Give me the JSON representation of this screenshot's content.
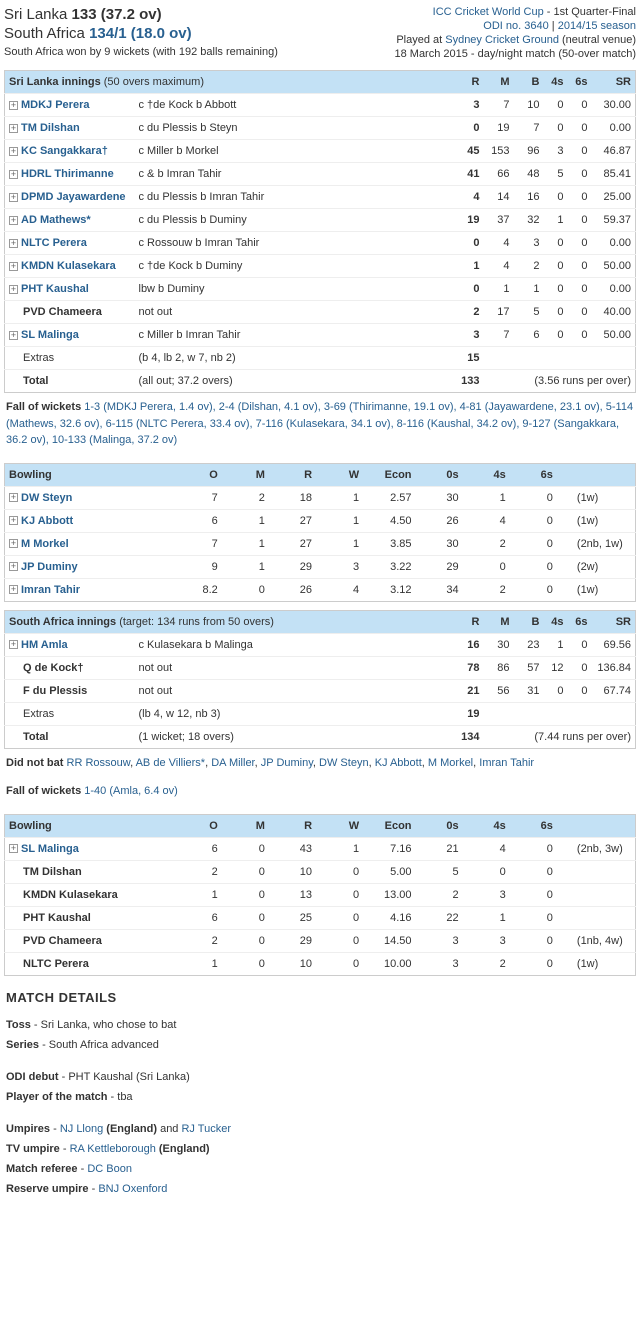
{
  "header": {
    "team1": "Sri Lanka",
    "score1": "133 (37.2 ov)",
    "team2": "South Africa",
    "score2": "134/1 (18.0 ov)",
    "result": "South Africa won by 9 wickets (with 192 balls remaining)",
    "tournament": "ICC Cricket World Cup",
    "stage": " - 1st Quarter-Final",
    "odi": "ODI no. 3640",
    "season": "2014/15 season",
    "venue_pre": "Played at ",
    "venue": "Sydney Cricket Ground",
    "venue_post": " (neutral venue)",
    "date": "18 March 2015 - day/night match (50-over match)"
  },
  "innings1": {
    "title": "Sri Lanka innings",
    "subtitle": " (50 overs maximum)",
    "cols": [
      "R",
      "M",
      "B",
      "4s",
      "6s",
      "SR"
    ],
    "batsmen": [
      {
        "e": true,
        "n": "MDKJ Perera",
        "d": "c †de Kock b Abbott",
        "r": "3",
        "m": "7",
        "b": "10",
        "f": "0",
        "s": "0",
        "sr": "30.00"
      },
      {
        "e": true,
        "n": "TM Dilshan",
        "d": "c du Plessis b Steyn",
        "r": "0",
        "m": "19",
        "b": "7",
        "f": "0",
        "s": "0",
        "sr": "0.00"
      },
      {
        "e": true,
        "n": "KC Sangakkara†",
        "d": "c Miller b Morkel",
        "r": "45",
        "m": "153",
        "b": "96",
        "f": "3",
        "s": "0",
        "sr": "46.87"
      },
      {
        "e": true,
        "n": "HDRL Thirimanne",
        "d": "c & b Imran Tahir",
        "r": "41",
        "m": "66",
        "b": "48",
        "f": "5",
        "s": "0",
        "sr": "85.41"
      },
      {
        "e": true,
        "n": "DPMD Jayawardene",
        "d": "c du Plessis b Imran Tahir",
        "r": "4",
        "m": "14",
        "b": "16",
        "f": "0",
        "s": "0",
        "sr": "25.00"
      },
      {
        "e": true,
        "n": "AD Mathews*",
        "d": "c du Plessis b Duminy",
        "r": "19",
        "m": "37",
        "b": "32",
        "f": "1",
        "s": "0",
        "sr": "59.37"
      },
      {
        "e": true,
        "n": "NLTC Perera",
        "d": "c Rossouw b Imran Tahir",
        "r": "0",
        "m": "4",
        "b": "3",
        "f": "0",
        "s": "0",
        "sr": "0.00"
      },
      {
        "e": true,
        "n": "KMDN Kulasekara",
        "d": "c †de Kock b Duminy",
        "r": "1",
        "m": "4",
        "b": "2",
        "f": "0",
        "s": "0",
        "sr": "50.00"
      },
      {
        "e": true,
        "n": "PHT Kaushal",
        "d": "lbw b Duminy",
        "r": "0",
        "m": "1",
        "b": "1",
        "f": "0",
        "s": "0",
        "sr": "0.00"
      },
      {
        "e": false,
        "n": "PVD Chameera",
        "d": "not out",
        "r": "2",
        "m": "17",
        "b": "5",
        "f": "0",
        "s": "0",
        "sr": "40.00"
      },
      {
        "e": true,
        "n": "SL Malinga",
        "d": "c Miller b Imran Tahir",
        "r": "3",
        "m": "7",
        "b": "6",
        "f": "0",
        "s": "0",
        "sr": "50.00"
      }
    ],
    "extras_lbl": "Extras",
    "extras_d": "(b 4, lb 2, w 7, nb 2)",
    "extras_r": "15",
    "total_lbl": "Total",
    "total_d": "(all out; 37.2 overs)",
    "total_r": "133",
    "total_rr": "(3.56 runs per over)",
    "fow_lbl": "Fall of wickets",
    "fow": "1-3 (MDKJ Perera, 1.4 ov), 2-4 (Dilshan, 4.1 ov), 3-69 (Thirimanne, 19.1 ov), 4-81 (Jayawardene, 23.1 ov), 5-114 (Mathews, 32.6 ov), 6-115 (NLTC Perera, 33.4 ov), 7-116 (Kulasekara, 34.1 ov), 8-116 (Kaushal, 34.2 ov), 9-127 (Sangakkara, 36.2 ov), 10-133 (Malinga, 37.2 ov)"
  },
  "bowling1": {
    "title": "Bowling",
    "cols": [
      "O",
      "M",
      "R",
      "W",
      "Econ",
      "0s",
      "4s",
      "6s"
    ],
    "bowlers": [
      {
        "e": true,
        "n": "DW Steyn",
        "o": "7",
        "m": "2",
        "r": "18",
        "w": "1",
        "ec": "2.57",
        "z": "30",
        "f": "1",
        "s": "0",
        "x": "(1w)"
      },
      {
        "e": true,
        "n": "KJ Abbott",
        "o": "6",
        "m": "1",
        "r": "27",
        "w": "1",
        "ec": "4.50",
        "z": "26",
        "f": "4",
        "s": "0",
        "x": "(1w)"
      },
      {
        "e": true,
        "n": "M Morkel",
        "o": "7",
        "m": "1",
        "r": "27",
        "w": "1",
        "ec": "3.85",
        "z": "30",
        "f": "2",
        "s": "0",
        "x": "(2nb, 1w)"
      },
      {
        "e": true,
        "n": "JP Duminy",
        "o": "9",
        "m": "1",
        "r": "29",
        "w": "3",
        "ec": "3.22",
        "z": "29",
        "f": "0",
        "s": "0",
        "x": "(2w)"
      },
      {
        "e": true,
        "n": "Imran Tahir",
        "o": "8.2",
        "m": "0",
        "r": "26",
        "w": "4",
        "ec": "3.12",
        "z": "34",
        "f": "2",
        "s": "0",
        "x": "(1w)"
      }
    ]
  },
  "innings2": {
    "title": "South Africa innings",
    "subtitle": " (target: 134 runs from 50 overs)",
    "batsmen": [
      {
        "e": true,
        "n": "HM Amla",
        "d": "c Kulasekara b Malinga",
        "r": "16",
        "m": "30",
        "b": "23",
        "f": "1",
        "s": "0",
        "sr": "69.56"
      },
      {
        "e": false,
        "n": "Q de Kock†",
        "d": "not out",
        "r": "78",
        "m": "86",
        "b": "57",
        "f": "12",
        "s": "0",
        "sr": "136.84"
      },
      {
        "e": false,
        "n": "F du Plessis",
        "d": "not out",
        "r": "21",
        "m": "56",
        "b": "31",
        "f": "0",
        "s": "0",
        "sr": "67.74"
      }
    ],
    "extras_lbl": "Extras",
    "extras_d": "(lb 4, w 12, nb 3)",
    "extras_r": "19",
    "total_lbl": "Total",
    "total_d": "(1 wicket; 18 overs)",
    "total_r": "134",
    "total_rr": "(7.44 runs per over)",
    "dnb_lbl": "Did not bat",
    "dnb": "RR Rossouw, AB de Villiers*, DA Miller, JP Duminy, DW Steyn, KJ Abbott, M Morkel, Imran Tahir",
    "fow_lbl": "Fall of wickets",
    "fow": "1-40 (Amla, 6.4 ov)"
  },
  "bowling2": {
    "title": "Bowling",
    "bowlers": [
      {
        "e": true,
        "n": "SL Malinga",
        "o": "6",
        "m": "0",
        "r": "43",
        "w": "1",
        "ec": "7.16",
        "z": "21",
        "f": "4",
        "s": "0",
        "x": "(2nb, 3w)"
      },
      {
        "e": false,
        "n": "TM Dilshan",
        "o": "2",
        "m": "0",
        "r": "10",
        "w": "0",
        "ec": "5.00",
        "z": "5",
        "f": "0",
        "s": "0",
        "x": ""
      },
      {
        "e": false,
        "n": "KMDN Kulasekara",
        "o": "1",
        "m": "0",
        "r": "13",
        "w": "0",
        "ec": "13.00",
        "z": "2",
        "f": "3",
        "s": "0",
        "x": ""
      },
      {
        "e": false,
        "n": "PHT Kaushal",
        "o": "6",
        "m": "0",
        "r": "25",
        "w": "0",
        "ec": "4.16",
        "z": "22",
        "f": "1",
        "s": "0",
        "x": ""
      },
      {
        "e": false,
        "n": "PVD Chameera",
        "o": "2",
        "m": "0",
        "r": "29",
        "w": "0",
        "ec": "14.50",
        "z": "3",
        "f": "3",
        "s": "0",
        "x": "(1nb, 4w)"
      },
      {
        "e": false,
        "n": "NLTC Perera",
        "o": "1",
        "m": "0",
        "r": "10",
        "w": "0",
        "ec": "10.00",
        "z": "3",
        "f": "2",
        "s": "0",
        "x": "(1w)"
      }
    ]
  },
  "details": {
    "title": "MATCH DETAILS",
    "lines": [
      {
        "k": "Toss",
        "v": " - Sri Lanka, who chose to bat"
      },
      {
        "k": "Series",
        "v": " - South Africa advanced"
      }
    ],
    "debut_k": "ODI debut",
    "debut_v": " - PHT Kaushal (Sri Lanka)",
    "pom_k": "Player of the match",
    "pom_v": " - tba",
    "ump_k": "Umpires",
    "ump_pre": " - ",
    "u1": "NJ Llong",
    "u1c": " (England)",
    "and": " and ",
    "u2": "RJ Tucker",
    "tvu_k": "TV umpire",
    "tvu_pre": " - ",
    "tvu": "RA Kettleborough",
    "tvu_c": " (England)",
    "ref_k": "Match referee",
    "ref_pre": " - ",
    "ref": "DC Boon",
    "res_k": "Reserve umpire",
    "res_pre": " - ",
    "res": "BNJ Oxenford"
  }
}
